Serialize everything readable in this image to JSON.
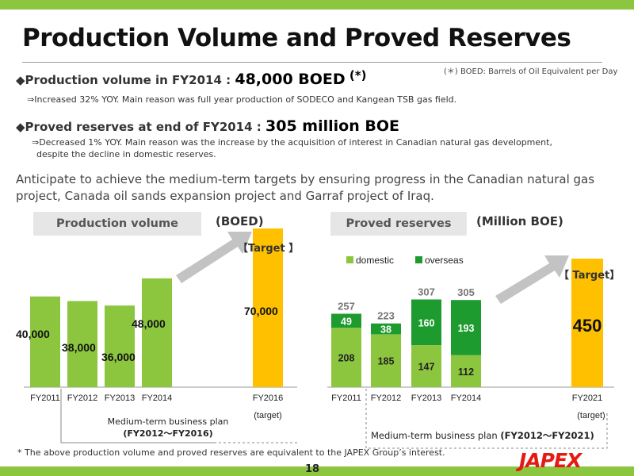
{
  "page_title": "Production Volume and Proved Reserves",
  "boed_note": "(＊) BOED: Barrels of Oil Equivalent per Day",
  "bullet1": {
    "marker": "◆",
    "label": "Production volume in FY2014 : ",
    "value": "48,000 BOED",
    "asterisk": "(*)",
    "detail": "⇒Increased 32% YOY.  Main reason was full year production of SODECO and Kangean TSB gas field."
  },
  "bullet2": {
    "marker": "◆",
    "label": "Proved reserves at end of FY2014 : ",
    "value": "305 million BOE",
    "detail_line1": "⇒Decreased 1% YOY.  Main reason was the increase by the acquisition of interest in Canadian natural gas development,",
    "detail_line2": "despite the decline in domestic reserves."
  },
  "paragraph": "Anticipate to achieve the medium-term targets by ensuring progress in the Canadian natural gas project, Canada oil sands expansion project and Garraf project of Iraq.",
  "left_panel": {
    "heading": "Production volume",
    "unit": "(BOED)",
    "target_label": "【Target 】",
    "plan_line1": "Medium-term business plan",
    "plan_line2": "(FY2012～FY2016)"
  },
  "right_panel": {
    "heading": "Proved reserves",
    "unit": "(Million BOE)",
    "target_label": "【 Target】",
    "plan_prefix": "Medium-term business plan ",
    "plan_range": "(FY2012～FY2021)"
  },
  "chart_data": [
    {
      "type": "bar",
      "categories": [
        "FY2011",
        "FY2012",
        "FY2013",
        "FY2014",
        "FY2016"
      ],
      "sub_label": [
        "",
        "",
        "",
        "",
        "(target)"
      ],
      "values": [
        40000,
        38000,
        36000,
        48000,
        70000
      ],
      "value_labels": [
        "40,000",
        "38,000",
        "36,000",
        "48,000",
        "70,000"
      ],
      "ylim": [
        0,
        72000
      ],
      "colors": [
        "#8cc63f",
        "#8cc63f",
        "#8cc63f",
        "#8cc63f",
        "#ffc000"
      ]
    },
    {
      "type": "bar",
      "stacked": true,
      "categories": [
        "FY2011",
        "FY2012",
        "FY2013",
        "FY2014",
        "FY2021"
      ],
      "sub_label": [
        "",
        "",
        "",
        "",
        "(target)"
      ],
      "series": [
        {
          "name": "domestic",
          "color": "#8cc63f",
          "values": [
            208,
            185,
            147,
            112,
            null
          ]
        },
        {
          "name": "overseas",
          "color": "#1e9b2f",
          "values": [
            49,
            38,
            160,
            193,
            null
          ]
        }
      ],
      "totals": [
        257,
        223,
        307,
        305,
        null
      ],
      "target_value": 450,
      "target_color": "#ffc000",
      "ylim": [
        0,
        460
      ],
      "legend": "top-left"
    }
  ],
  "footnote": "* The above production volume and proved reserves are equivalent to the JAPEX Group’s interest.",
  "page_number": "18",
  "logo_text": "JAPEX"
}
